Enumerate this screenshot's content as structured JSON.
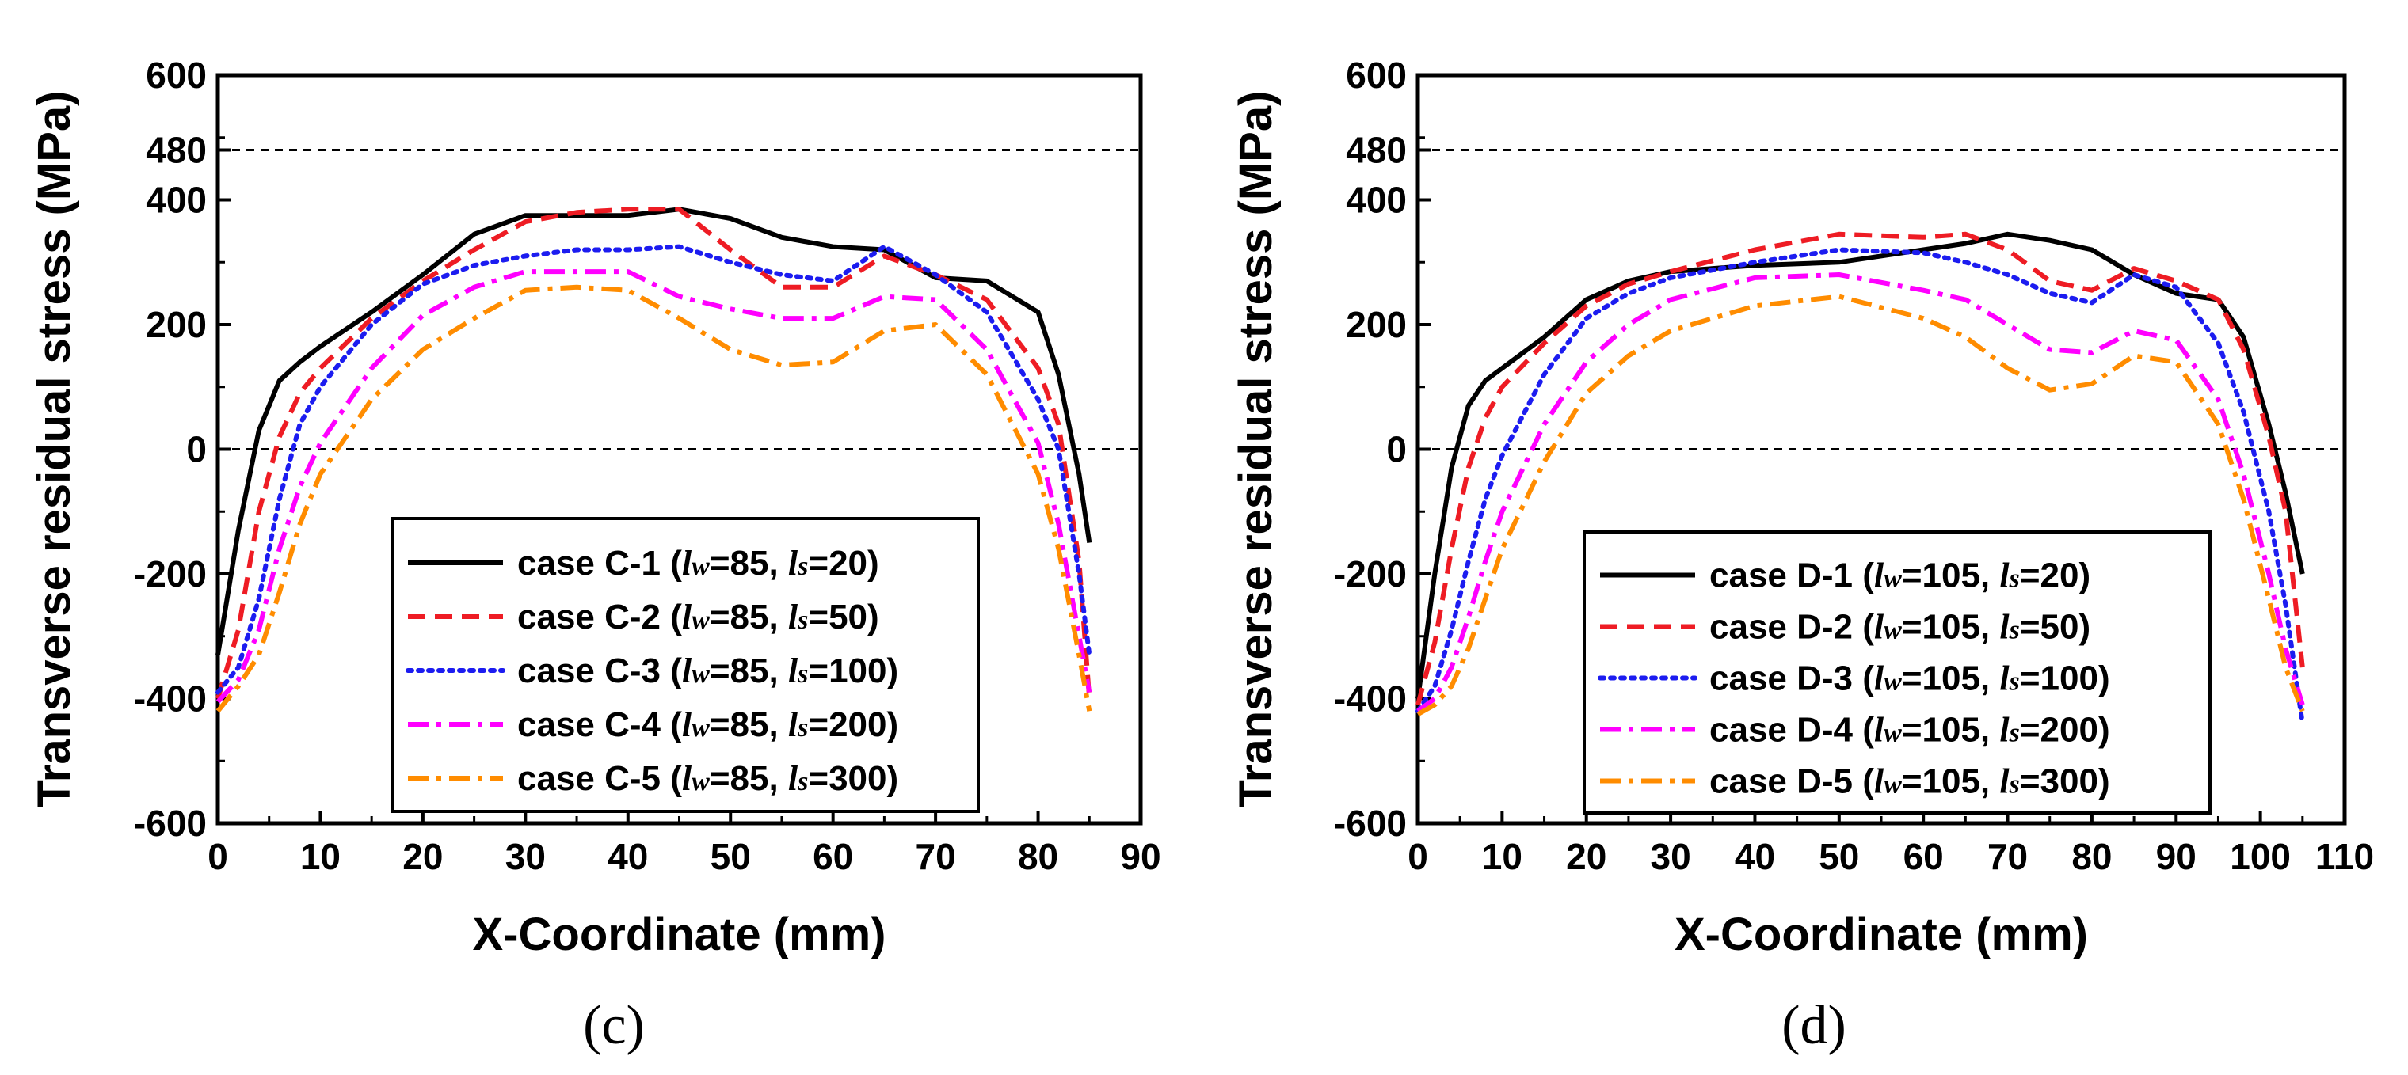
{
  "chart_data": [
    {
      "type": "line",
      "panel_label": "(c)",
      "xlabel": "X-Coordinate (mm)",
      "ylabel": "Transverse residual stress (MPa)",
      "xlim": [
        0,
        90
      ],
      "ylim": [
        -600,
        600
      ],
      "xticks": [
        "0",
        "10",
        "20",
        "30",
        "40",
        "50",
        "60",
        "70",
        "80",
        "90"
      ],
      "yticks": [
        "600",
        "480",
        "400",
        "200",
        "0",
        "-200",
        "-400",
        "-600"
      ],
      "reference_lines": [
        480,
        0
      ],
      "legend_position": "lower-center",
      "series": [
        {
          "name": "case C-1",
          "lw": "85",
          "ls": "20",
          "color": "#000000",
          "dash": "solid",
          "x": [
            0,
            2,
            4,
            6,
            8,
            10,
            15,
            20,
            25,
            30,
            35,
            40,
            45,
            50,
            55,
            60,
            65,
            70,
            75,
            80,
            82,
            84,
            85
          ],
          "y": [
            -330,
            -130,
            30,
            110,
            140,
            165,
            220,
            280,
            345,
            375,
            375,
            375,
            385,
            370,
            340,
            325,
            320,
            275,
            270,
            220,
            120,
            -40,
            -150
          ]
        },
        {
          "name": "case C-2",
          "lw": "85",
          "ls": "50",
          "color": "#ee1c24",
          "dash": "dash",
          "x": [
            0,
            2,
            4,
            6,
            8,
            10,
            15,
            20,
            25,
            30,
            35,
            40,
            45,
            50,
            55,
            60,
            65,
            70,
            75,
            80,
            82,
            84,
            85
          ],
          "y": [
            -400,
            -290,
            -100,
            20,
            90,
            130,
            210,
            270,
            320,
            365,
            380,
            385,
            385,
            320,
            260,
            260,
            310,
            280,
            240,
            130,
            40,
            -180,
            -400
          ]
        },
        {
          "name": "case C-3",
          "lw": "85",
          "ls": "100",
          "color": "#1c1cf0",
          "dash": "dot",
          "x": [
            0,
            2,
            4,
            6,
            8,
            10,
            15,
            20,
            25,
            30,
            35,
            40,
            45,
            50,
            55,
            60,
            65,
            70,
            75,
            80,
            82,
            84,
            85
          ],
          "y": [
            -390,
            -350,
            -240,
            -80,
            40,
            100,
            200,
            265,
            295,
            310,
            320,
            320,
            325,
            300,
            280,
            270,
            325,
            280,
            220,
            80,
            0,
            -200,
            -330
          ]
        },
        {
          "name": "case C-4",
          "lw": "85",
          "ls": "200",
          "color": "#ff00ff",
          "dash": "dashdot",
          "x": [
            0,
            2,
            4,
            6,
            8,
            10,
            15,
            20,
            25,
            30,
            35,
            40,
            45,
            50,
            55,
            60,
            65,
            70,
            75,
            80,
            82,
            84,
            85
          ],
          "y": [
            -405,
            -370,
            -290,
            -160,
            -60,
            10,
            130,
            215,
            260,
            285,
            285,
            285,
            245,
            225,
            210,
            210,
            245,
            240,
            160,
            10,
            -120,
            -300,
            -390
          ]
        },
        {
          "name": "case C-5",
          "lw": "85",
          "ls": "300",
          "color": "#ff8c00",
          "dash": "dashdot",
          "x": [
            0,
            2,
            4,
            6,
            8,
            10,
            15,
            20,
            25,
            30,
            35,
            40,
            45,
            50,
            55,
            60,
            65,
            70,
            75,
            80,
            82,
            84,
            85
          ],
          "y": [
            -420,
            -380,
            -330,
            -230,
            -120,
            -40,
            80,
            160,
            210,
            255,
            260,
            255,
            210,
            160,
            135,
            140,
            190,
            200,
            120,
            -40,
            -160,
            -330,
            -420
          ]
        }
      ]
    },
    {
      "type": "line",
      "panel_label": "(d)",
      "xlabel": "X-Coordinate (mm)",
      "ylabel": "Transverse residual stress (MPa)",
      "xlim": [
        0,
        110
      ],
      "ylim": [
        -600,
        600
      ],
      "xticks": [
        "0",
        "10",
        "20",
        "30",
        "40",
        "50",
        "60",
        "70",
        "80",
        "90",
        "100",
        "110"
      ],
      "yticks": [
        "600",
        "480",
        "400",
        "200",
        "0",
        "-200",
        "-400",
        "-600"
      ],
      "reference_lines": [
        480,
        0
      ],
      "legend_position": "lower-center",
      "series": [
        {
          "name": "case D-1",
          "lw": "105",
          "ls": "20",
          "color": "#000000",
          "dash": "solid",
          "x": [
            0,
            2,
            4,
            6,
            8,
            10,
            15,
            20,
            25,
            30,
            40,
            50,
            60,
            65,
            70,
            75,
            80,
            85,
            90,
            95,
            98,
            101,
            103,
            105
          ],
          "y": [
            -400,
            -200,
            -30,
            70,
            110,
            130,
            180,
            240,
            270,
            285,
            295,
            300,
            320,
            330,
            345,
            335,
            320,
            280,
            250,
            240,
            180,
            40,
            -70,
            -200
          ]
        },
        {
          "name": "case D-2",
          "lw": "105",
          "ls": "50",
          "color": "#ee1c24",
          "dash": "dash",
          "x": [
            0,
            2,
            4,
            6,
            8,
            10,
            15,
            20,
            25,
            30,
            40,
            50,
            60,
            65,
            70,
            75,
            80,
            85,
            90,
            95,
            98,
            101,
            103,
            105
          ],
          "y": [
            -410,
            -310,
            -160,
            -30,
            50,
            100,
            170,
            230,
            265,
            285,
            320,
            345,
            340,
            345,
            320,
            270,
            255,
            290,
            270,
            240,
            160,
            20,
            -100,
            -350
          ]
        },
        {
          "name": "case D-3",
          "lw": "105",
          "ls": "100",
          "color": "#1c1cf0",
          "dash": "dot",
          "x": [
            0,
            2,
            4,
            6,
            8,
            10,
            15,
            20,
            25,
            30,
            40,
            50,
            60,
            65,
            70,
            75,
            80,
            85,
            90,
            95,
            98,
            101,
            103,
            105
          ],
          "y": [
            -420,
            -380,
            -290,
            -180,
            -80,
            -10,
            120,
            210,
            250,
            275,
            300,
            320,
            315,
            300,
            280,
            250,
            235,
            280,
            260,
            170,
            60,
            -100,
            -250,
            -440
          ]
        },
        {
          "name": "case D-4",
          "lw": "105",
          "ls": "200",
          "color": "#ff00ff",
          "dash": "dashdot",
          "x": [
            0,
            2,
            4,
            6,
            8,
            10,
            15,
            20,
            25,
            30,
            40,
            50,
            60,
            65,
            70,
            75,
            80,
            85,
            90,
            95,
            98,
            101,
            103,
            105
          ],
          "y": [
            -420,
            -400,
            -350,
            -270,
            -180,
            -100,
            40,
            140,
            200,
            240,
            275,
            280,
            255,
            240,
            200,
            160,
            155,
            190,
            175,
            80,
            -40,
            -200,
            -320,
            -410
          ]
        },
        {
          "name": "case D-5",
          "lw": "105",
          "ls": "300",
          "color": "#ff8c00",
          "dash": "dashdot",
          "x": [
            0,
            2,
            4,
            6,
            8,
            10,
            15,
            20,
            25,
            30,
            40,
            50,
            60,
            65,
            70,
            75,
            80,
            85,
            90,
            95,
            98,
            101,
            103,
            105
          ],
          "y": [
            -425,
            -410,
            -380,
            -320,
            -240,
            -160,
            -20,
            90,
            150,
            190,
            230,
            245,
            210,
            180,
            130,
            95,
            105,
            150,
            140,
            40,
            -80,
            -240,
            -350,
            -420
          ]
        }
      ]
    }
  ]
}
